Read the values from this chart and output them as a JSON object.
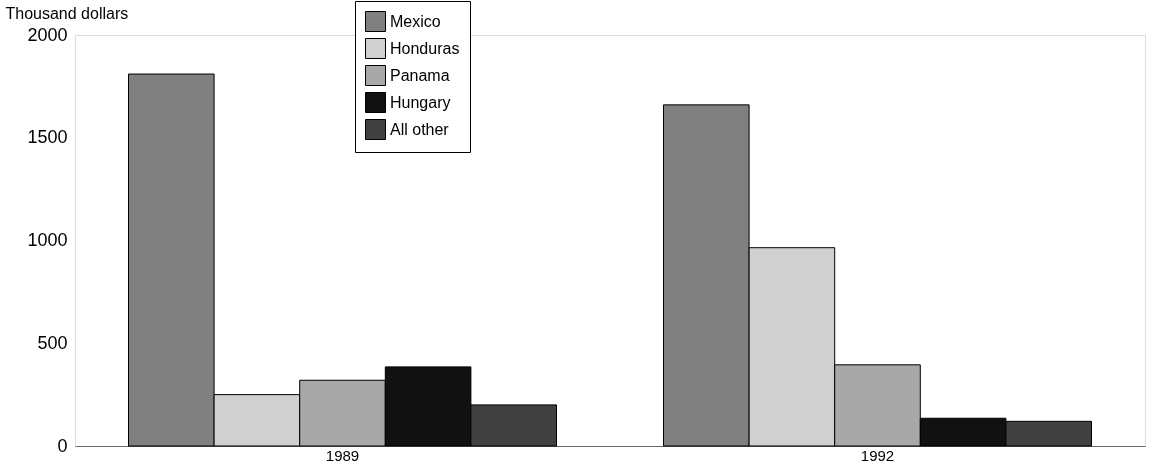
{
  "chart_data": {
    "type": "bar",
    "ylabel": "Thousand dollars",
    "categories": [
      "1989",
      "1992"
    ],
    "series": [
      {
        "name": "Mexico",
        "color": "#808080",
        "values": [
          1810,
          1660
        ]
      },
      {
        "name": "Honduras",
        "color": "#d0d0d0",
        "values": [
          250,
          965
        ]
      },
      {
        "name": "Panama",
        "color": "#a8a8a8",
        "values": [
          320,
          395
        ]
      },
      {
        "name": "Hungary",
        "color": "#111111",
        "values": [
          385,
          135
        ]
      },
      {
        "name": "All other",
        "color": "#404040",
        "values": [
          200,
          120
        ]
      }
    ],
    "ylim": [
      0,
      2000
    ],
    "yticks": [
      0,
      500,
      1000,
      1500,
      2000
    ],
    "grid": false,
    "legend": "top"
  }
}
